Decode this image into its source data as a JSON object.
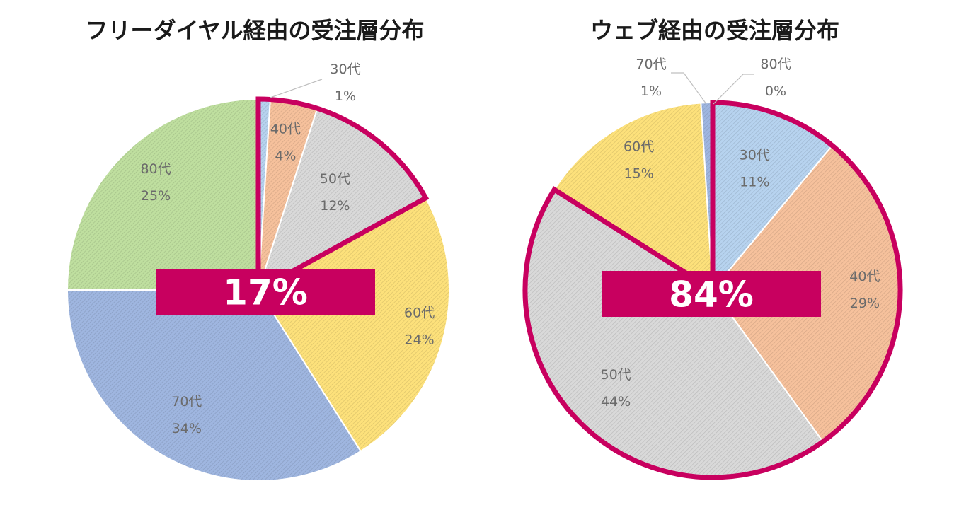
{
  "chart_data": [
    {
      "type": "pie",
      "title": "フリーダイヤル経由の受注層分布",
      "categories": [
        "30代",
        "40代",
        "50代",
        "60代",
        "70代",
        "80代"
      ],
      "values": [
        1,
        4,
        12,
        24,
        34,
        25
      ],
      "value_labels": [
        "1%",
        "4%",
        "12%",
        "24%",
        "34%",
        "25%"
      ],
      "colors": [
        "#b7d3ef",
        "#f6c19c",
        "#d9d9d9",
        "#fde17b",
        "#9fb6e0",
        "#bfdf9f"
      ],
      "highlight": {
        "categories": [
          "30代",
          "40代",
          "50代"
        ],
        "outline_color": "#c8005f",
        "callout": "17%"
      },
      "legend": "none"
    },
    {
      "type": "pie",
      "title": "ウェブ経由の受注層分布",
      "categories": [
        "30代",
        "40代",
        "50代",
        "60代",
        "70代",
        "80代"
      ],
      "values": [
        11,
        29,
        44,
        15,
        1,
        0
      ],
      "value_labels": [
        "11%",
        "29%",
        "44%",
        "15%",
        "1%",
        "0%"
      ],
      "colors": [
        "#b7d3ef",
        "#f6c19c",
        "#d9d9d9",
        "#fde17b",
        "#9fb6e0",
        "#bfdf9f"
      ],
      "highlight": {
        "categories": [
          "30代",
          "40代",
          "50代"
        ],
        "outline_color": "#c8005f",
        "callout": "84%"
      },
      "legend": "none"
    }
  ]
}
